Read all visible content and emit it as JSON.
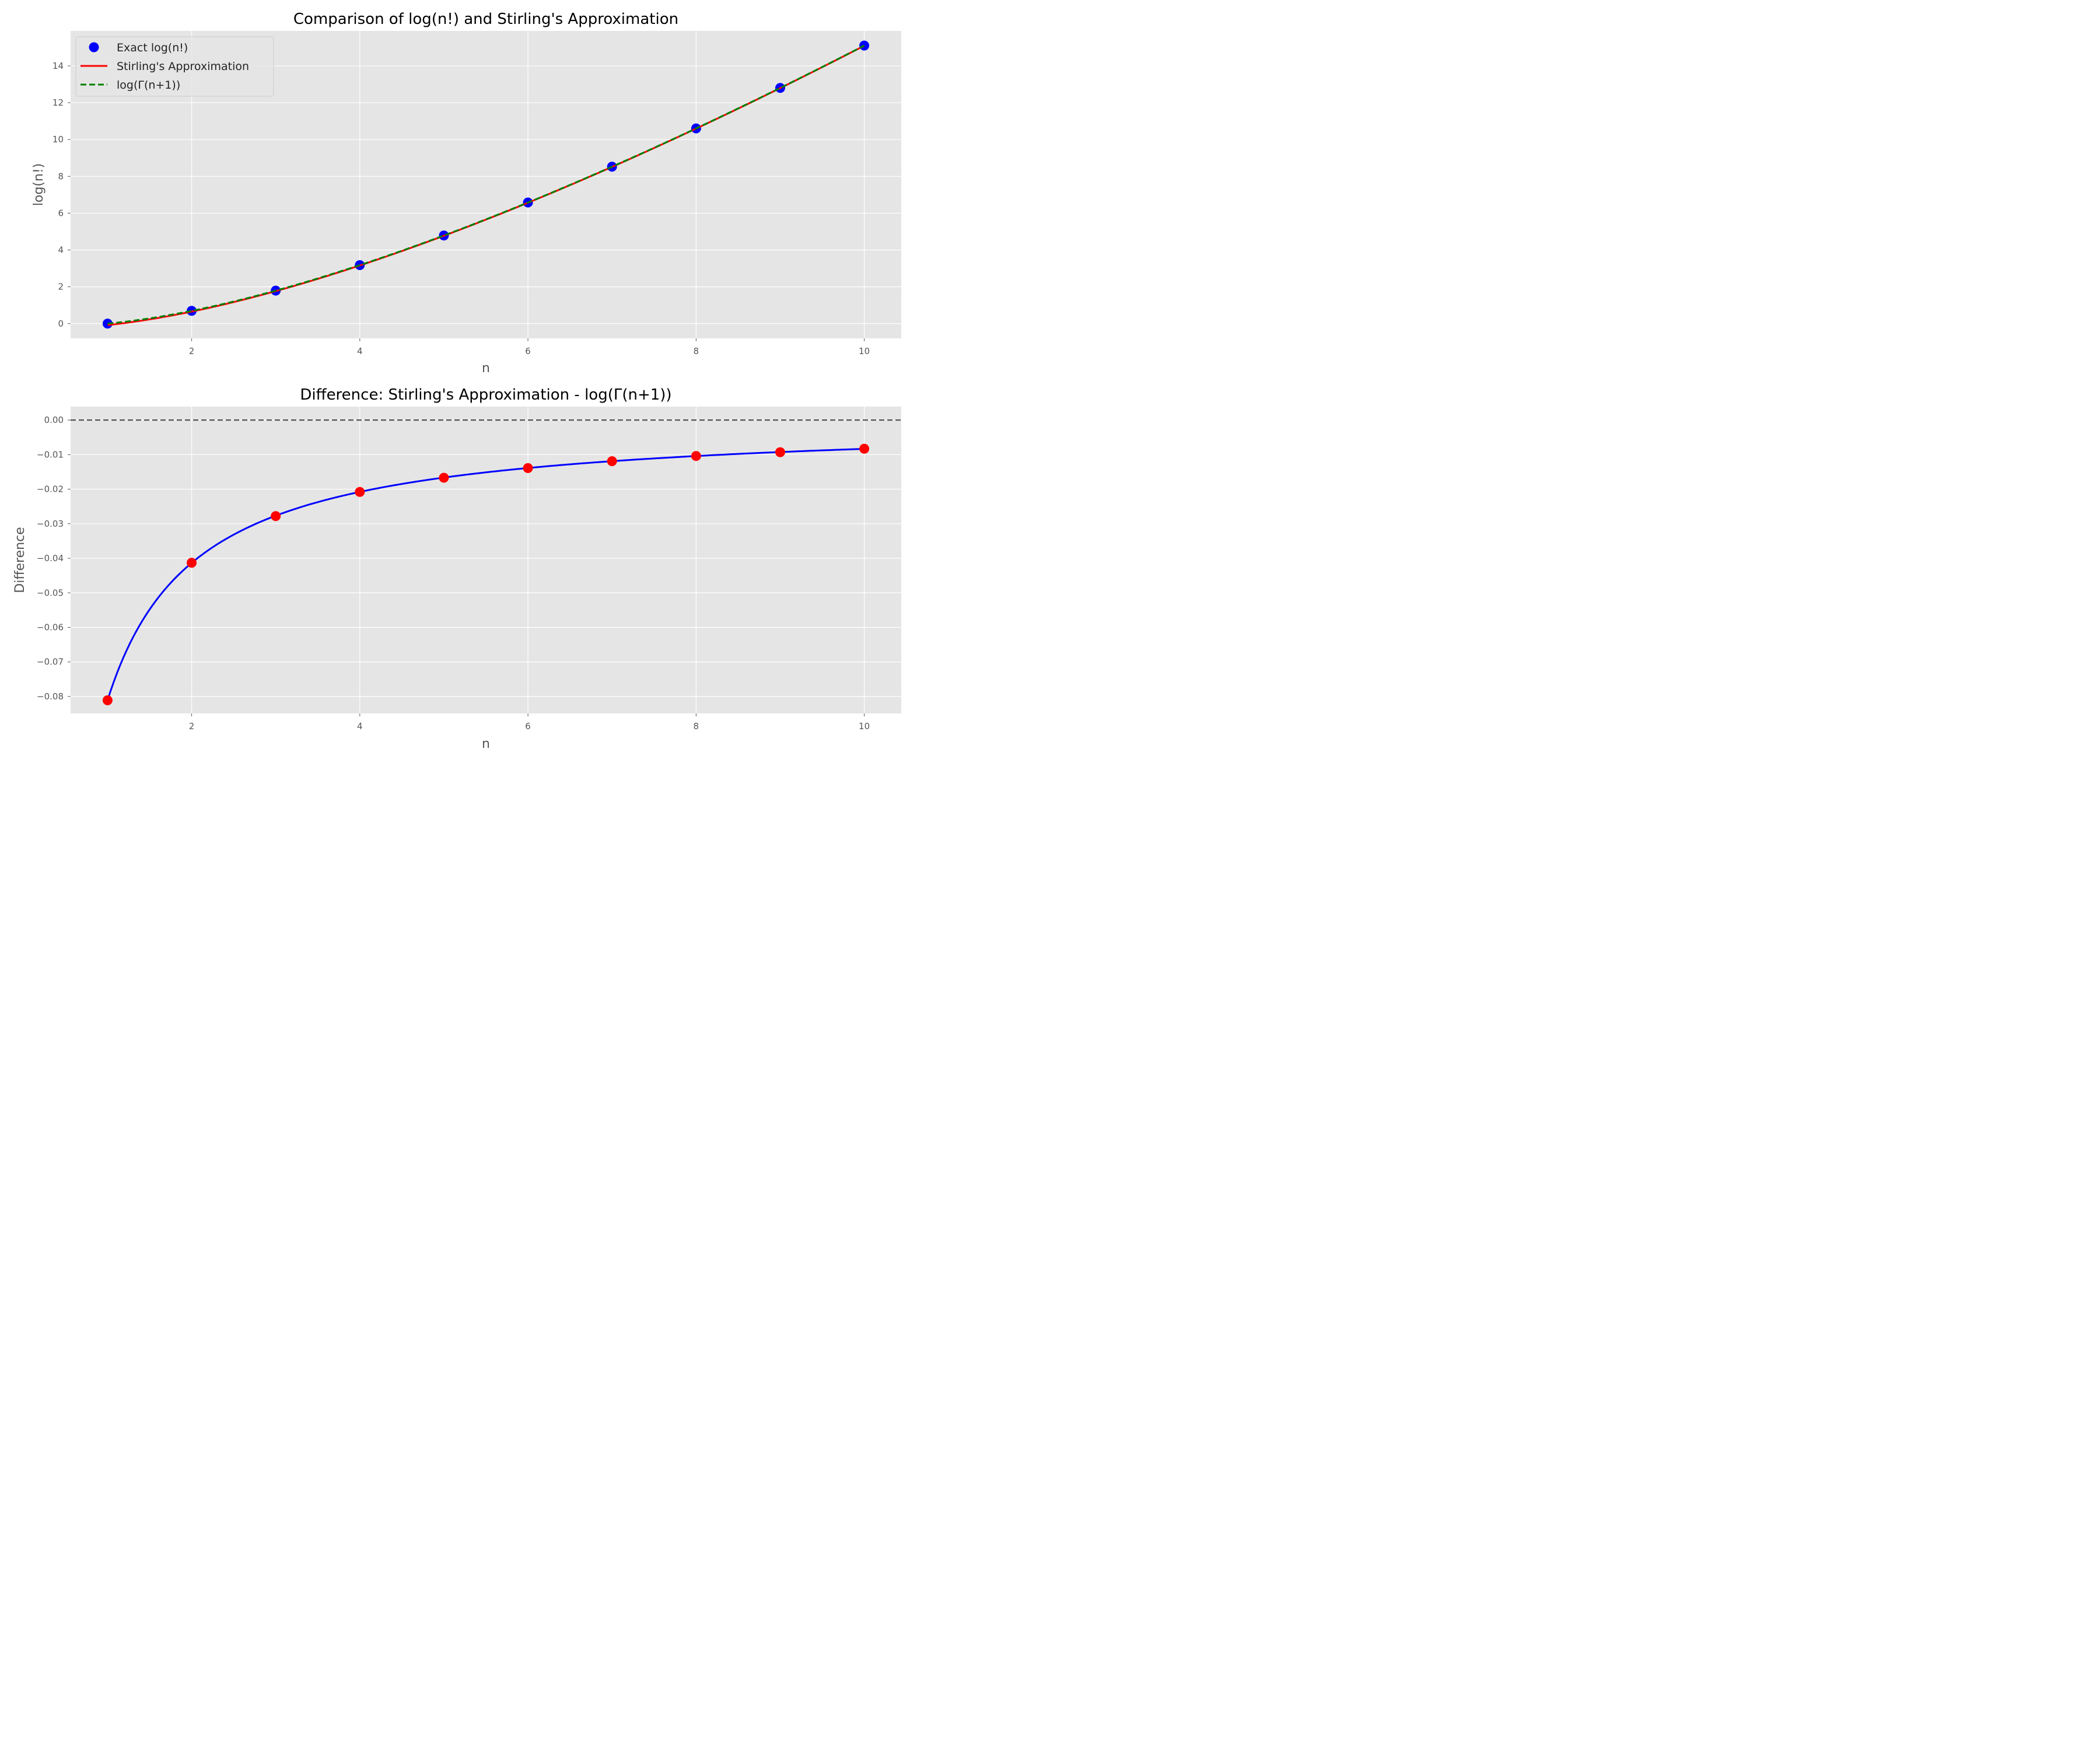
{
  "chart_data": [
    {
      "type": "line",
      "title": "Comparison of log(n!) and Stirling's Approximation",
      "xlabel": "n",
      "ylabel": "log(n!)",
      "xlim": [
        0.56,
        10.44
      ],
      "ylim": [
        -0.8,
        15.9
      ],
      "xticks": [
        2,
        4,
        6,
        8,
        10
      ],
      "yticks": [
        0,
        2,
        4,
        6,
        8,
        10,
        12,
        14
      ],
      "grid": true,
      "legend_position": "upper-left",
      "series": [
        {
          "name": "Exact log(n!)",
          "kind": "scatter",
          "color": "#0000ff",
          "x": [
            1,
            2,
            3,
            4,
            5,
            6,
            7,
            8,
            9,
            10
          ],
          "y": [
            0.0,
            0.693,
            1.792,
            3.178,
            4.787,
            6.579,
            8.525,
            10.605,
            12.802,
            15.104
          ]
        },
        {
          "name": "Stirling's Approximation",
          "kind": "line",
          "style": "solid",
          "color": "#ff0000",
          "x_range": [
            1,
            10
          ],
          "formula": "stirling"
        },
        {
          "name": "log(Γ(n+1))",
          "kind": "line",
          "style": "dashed",
          "color": "#008000",
          "x_range": [
            1,
            10
          ],
          "formula": "loggamma"
        }
      ]
    },
    {
      "type": "line",
      "title": "Difference: Stirling's Approximation - log(Γ(n+1))",
      "xlabel": "n",
      "ylabel": "Difference",
      "xlim": [
        0.56,
        10.44
      ],
      "ylim": [
        -0.0849,
        0.0039
      ],
      "xticks": [
        2,
        4,
        6,
        8,
        10
      ],
      "yticks": [
        0.0,
        -0.01,
        -0.02,
        -0.03,
        -0.04,
        -0.05,
        -0.06,
        -0.07,
        -0.08
      ],
      "ytick_labels": [
        "0.00",
        "−0.01",
        "−0.02",
        "−0.03",
        "−0.04",
        "−0.05",
        "−0.06",
        "−0.07",
        "−0.08"
      ],
      "grid": true,
      "reference_line": {
        "y": 0,
        "color": "#444444",
        "style": "dashed"
      },
      "series": [
        {
          "kind": "line",
          "style": "solid",
          "color": "#0000ff",
          "x_range": [
            1,
            10
          ],
          "formula": "difference"
        },
        {
          "kind": "scatter",
          "color": "#ff0000",
          "x": [
            1,
            2,
            3,
            4,
            5,
            6,
            7,
            8,
            9,
            10
          ],
          "y": [
            -0.0811,
            -0.0413,
            -0.0278,
            -0.0208,
            -0.0167,
            -0.0139,
            -0.0119,
            -0.0104,
            -0.0093,
            -0.0083
          ]
        }
      ]
    }
  ]
}
